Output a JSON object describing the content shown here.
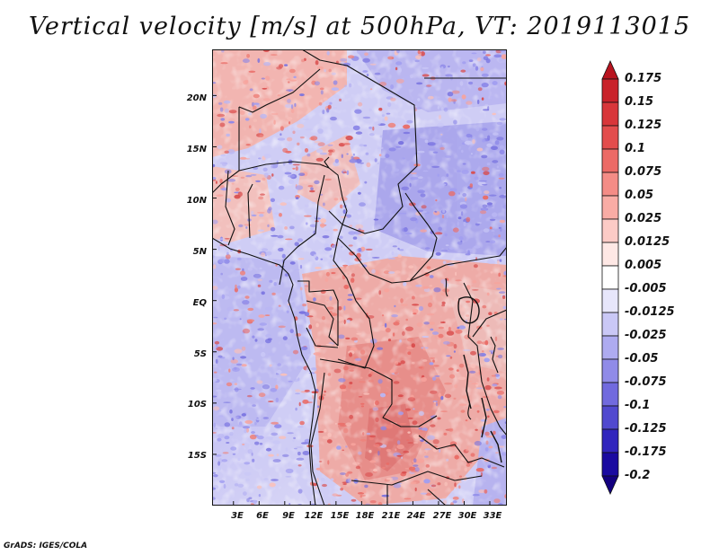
{
  "title": "Vertical velocity [m/s] at 500hPa, VT: 2019113015",
  "footer": "GrADS: IGES/COLA",
  "map": {
    "lat_labels": [
      "20N",
      "15N",
      "10N",
      "5N",
      "EQ",
      "5S",
      "10S",
      "15S"
    ],
    "lon_labels": [
      "3E",
      "6E",
      "9E",
      "12E",
      "15E",
      "18E",
      "21E",
      "24E",
      "27E",
      "30E",
      "33E"
    ],
    "lat_values": [
      20,
      15,
      10,
      5,
      0,
      -5,
      -10,
      -15
    ],
    "lon_values": [
      3,
      6,
      9,
      12,
      15,
      18,
      21,
      24,
      27,
      30,
      33
    ],
    "lon_range": [
      0.5,
      35
    ],
    "lat_range": [
      -20,
      24.5
    ],
    "field": "vertical velocity at 500hPa",
    "units": "m/s"
  },
  "colorbar": {
    "labels": [
      "0.175",
      "0.15",
      "0.125",
      "0.1",
      "0.075",
      "0.05",
      "0.025",
      "0.0125",
      "0.005",
      "-0.005",
      "-0.0125",
      "-0.025",
      "-0.05",
      "-0.075",
      "-0.1",
      "-0.125",
      "-0.175",
      "-0.2"
    ],
    "colors": [
      "#b8141f",
      "#c9222a",
      "#d8363a",
      "#e34d4d",
      "#ec6a66",
      "#f48c86",
      "#f9aca5",
      "#fccbc6",
      "#fee8e5",
      "#ffffff",
      "#e7e6fb",
      "#cac8f6",
      "#aeabf0",
      "#908be8",
      "#716ade",
      "#5149cf",
      "#3125bd",
      "#1a0aa0",
      "#130080"
    ]
  }
}
